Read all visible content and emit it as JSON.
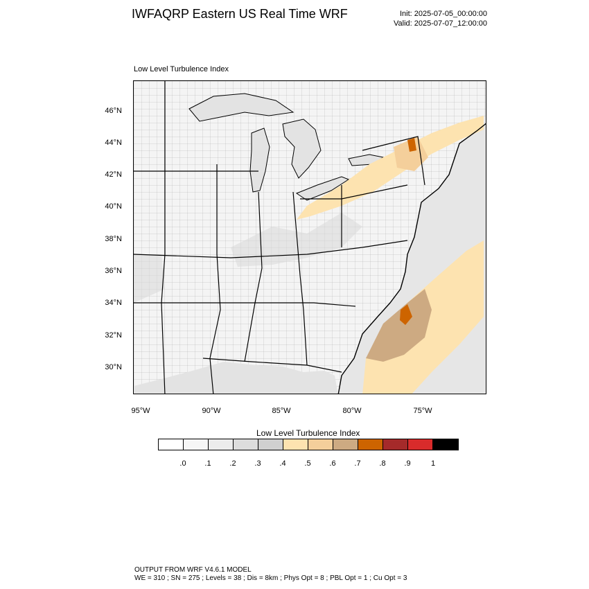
{
  "header": {
    "title": "IWFAQRP Eastern US Real Time WRF",
    "init": "Init: 2025-07-05_00:00:00",
    "valid": "Valid: 2025-07-07_12:00:00"
  },
  "map": {
    "subtitle": "Low Level Turbulence Index",
    "lat_labels": [
      "46°N",
      "44°N",
      "42°N",
      "40°N",
      "38°N",
      "36°N",
      "34°N",
      "32°N",
      "30°N"
    ],
    "lon_labels": [
      "95°W",
      "90°W",
      "85°W",
      "80°W",
      "75°W"
    ],
    "land_color": "#f4f4f4",
    "water_color": "#e3e3e3",
    "boundary_color": "#000000"
  },
  "colorbar": {
    "title": "Low Level Turbulence Index",
    "labels": [
      ".0",
      ".1",
      ".2",
      ".3",
      ".4",
      ".5",
      ".6",
      ".7",
      ".8",
      ".9",
      "1"
    ],
    "colors": [
      "#ffffff",
      "#f6f6f6",
      "#ececec",
      "#dddddd",
      "#d0d0d0",
      "#fde3b0",
      "#f4cf9b",
      "#cdaa82",
      "#cd6400",
      "#a52a2a",
      "#d92b2b",
      "#000000"
    ]
  },
  "footer": {
    "line1": "OUTPUT FROM WRF V4.6.1 MODEL",
    "line2": "WE = 310 ; SN = 275 ; Levels = 38 ; Dis = 8km ; Phys Opt = 8 ; PBL Opt = 1 ; Cu Opt = 3"
  }
}
